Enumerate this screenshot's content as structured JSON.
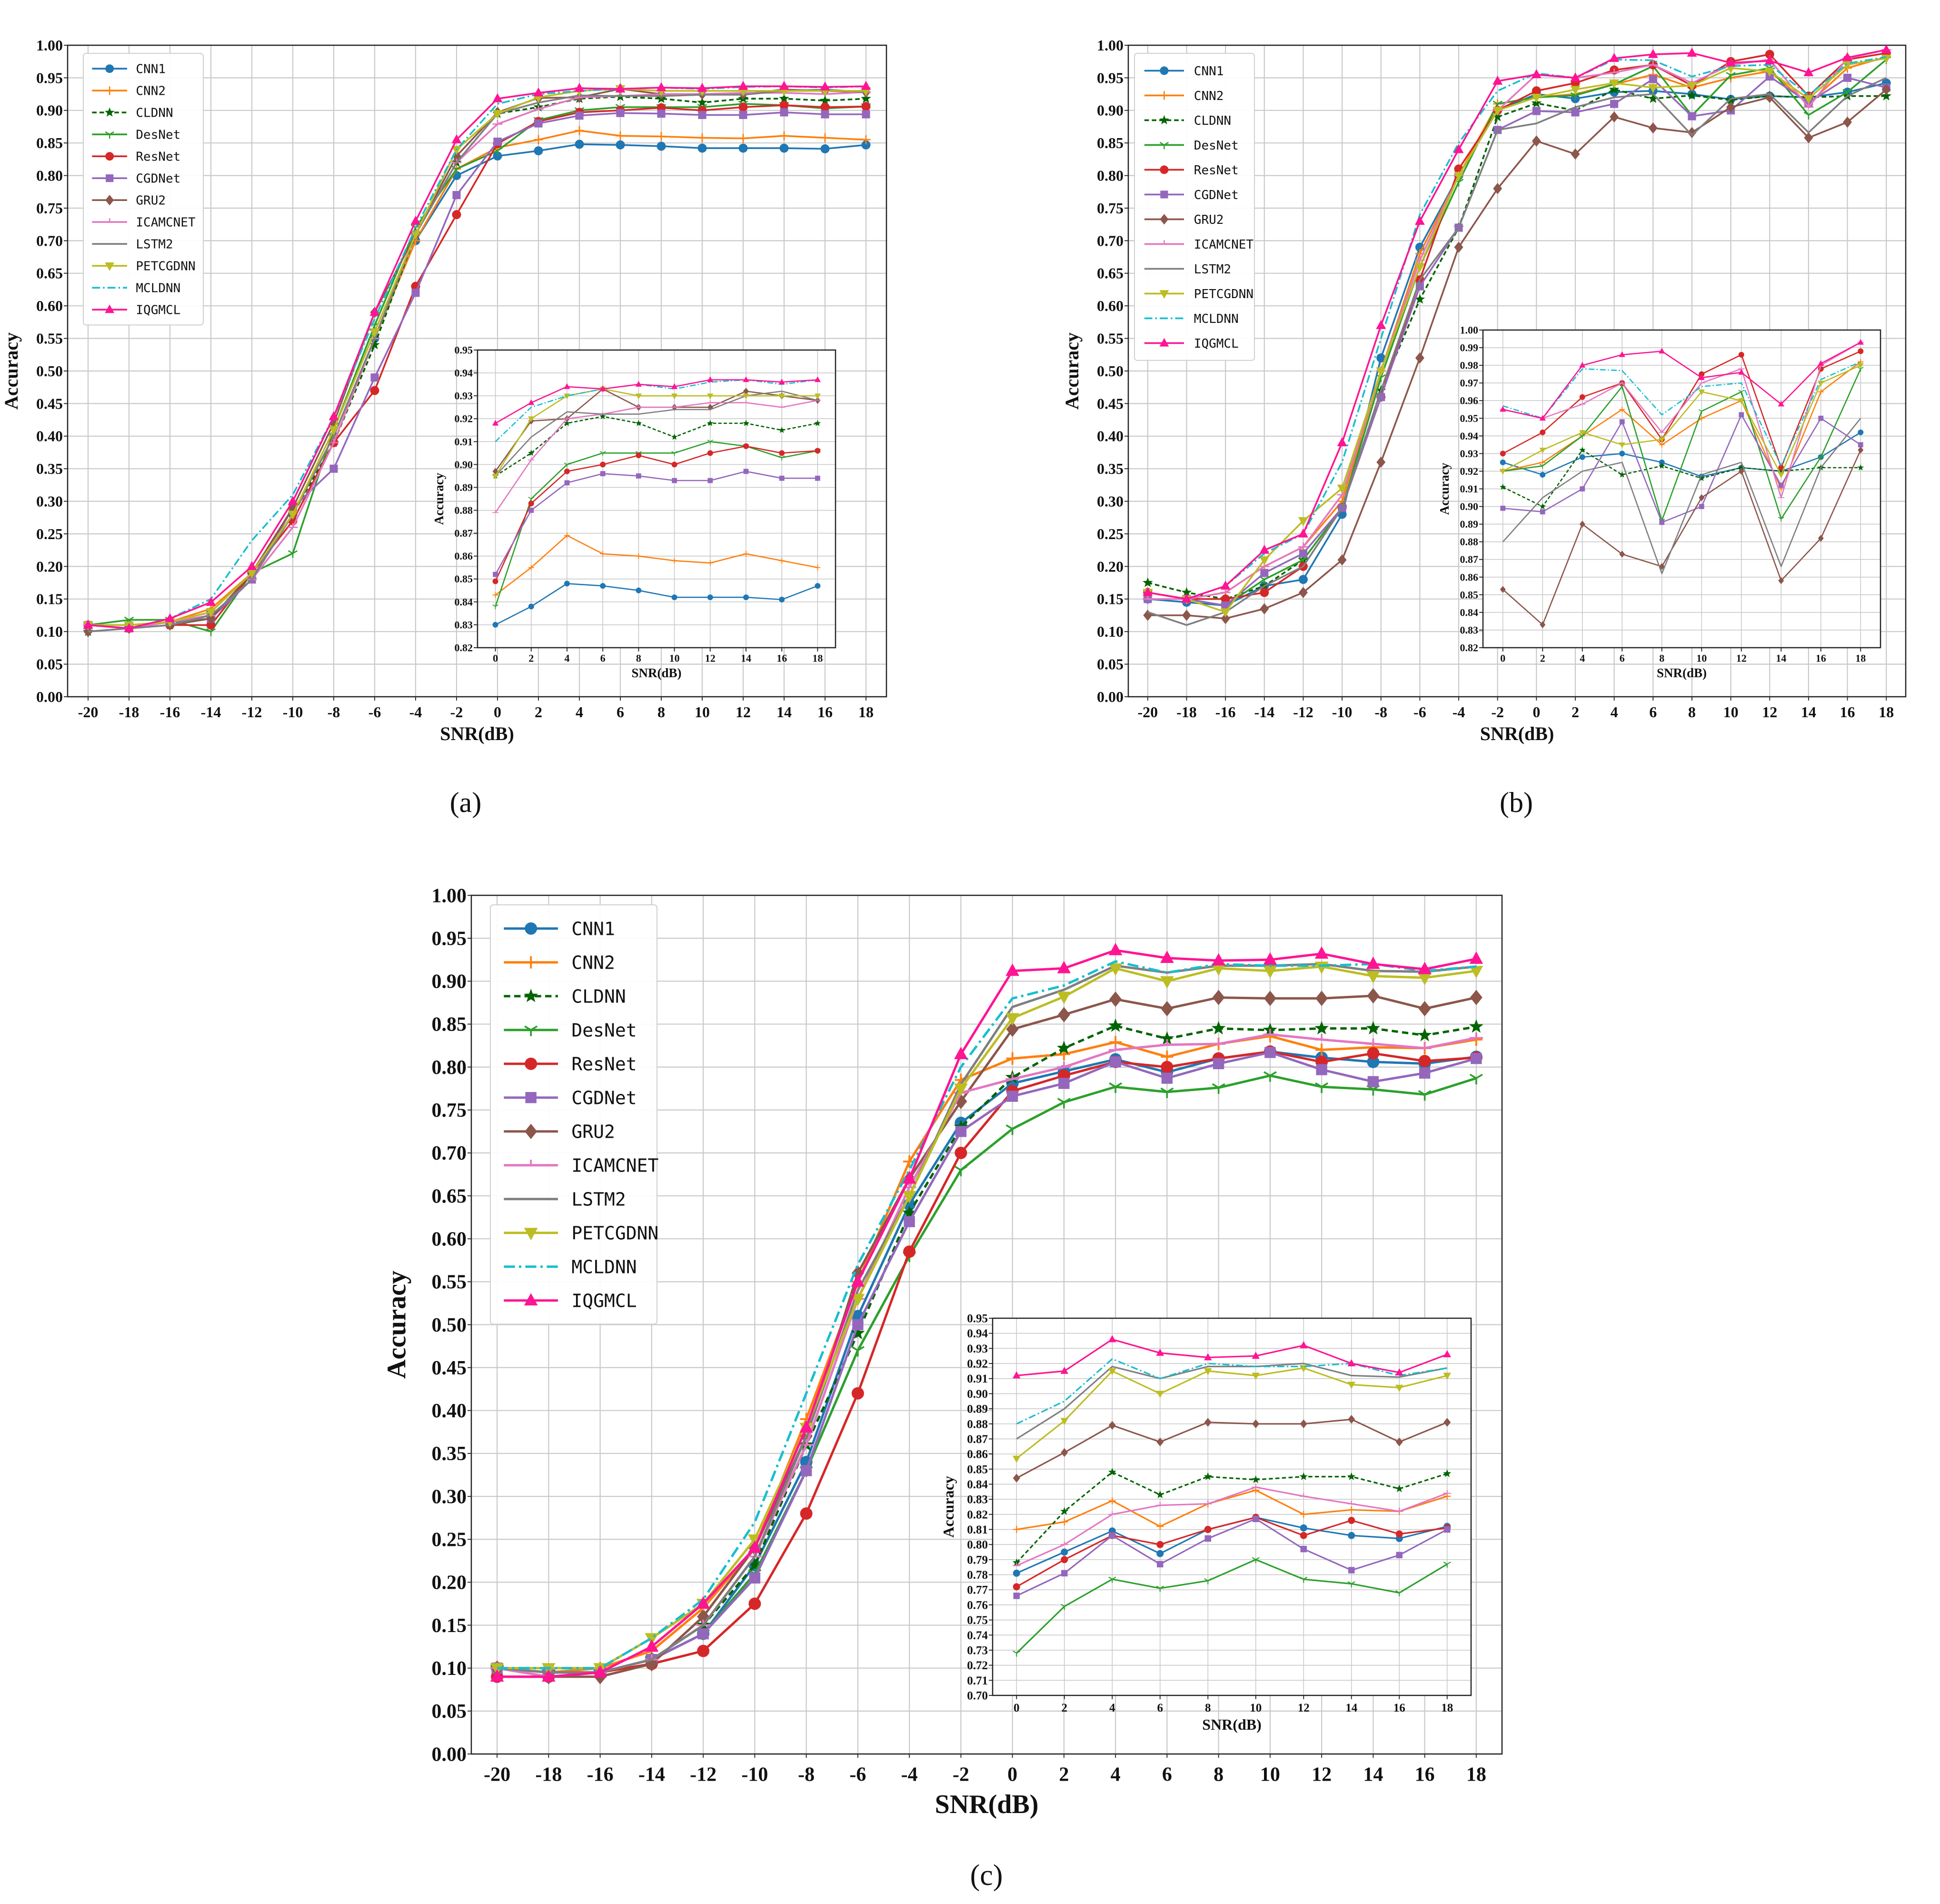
{
  "colors": {
    "CNN1": "#1f77b4",
    "CNN2": "#ff7f0e",
    "CLDNN": "#006400",
    "DesNet": "#2ca02c",
    "ResNet": "#d62728",
    "CGDNet": "#9467bd",
    "GRU2": "#8c564b",
    "ICAMCNET": "#e377c2",
    "LSTM2": "#7f7f7f",
    "PETCGDNN": "#bcbd22",
    "MCLDNN": "#17becf",
    "IQGMCL": "#ff1493"
  },
  "chart_data": [
    {
      "id": "a",
      "panel_label": "(a)",
      "type": "line",
      "xlabel": "SNR(dB)",
      "ylabel": "Accuracy",
      "x": [
        -20,
        -18,
        -16,
        -14,
        -12,
        -10,
        -8,
        -6,
        -4,
        -2,
        0,
        2,
        4,
        6,
        8,
        10,
        12,
        14,
        16,
        18
      ],
      "ylim": [
        0,
        1
      ],
      "yticks_step": 0.05,
      "grid": true,
      "legend": "top-left",
      "series": [
        {
          "name": "CNN1",
          "values": [
            0.11,
            0.11,
            0.115,
            0.13,
            0.19,
            0.28,
            0.4,
            0.55,
            0.7,
            0.8,
            0.83,
            0.838,
            0.848,
            0.847,
            0.845,
            0.842,
            0.842,
            0.842,
            0.841,
            0.847
          ]
        },
        {
          "name": "CNN2",
          "values": [
            0.11,
            0.11,
            0.115,
            0.135,
            0.19,
            0.28,
            0.4,
            0.55,
            0.7,
            0.81,
            0.843,
            0.855,
            0.869,
            0.861,
            0.86,
            0.858,
            0.857,
            0.861,
            0.858,
            0.855
          ]
        },
        {
          "name": "CLDNN",
          "values": [
            0.1,
            0.105,
            0.11,
            0.12,
            0.18,
            0.28,
            0.39,
            0.54,
            0.71,
            0.82,
            0.895,
            0.905,
            0.918,
            0.921,
            0.918,
            0.912,
            0.918,
            0.918,
            0.915,
            0.918
          ]
        },
        {
          "name": "DesNet",
          "values": [
            0.11,
            0.118,
            0.118,
            0.1,
            0.19,
            0.22,
            0.41,
            0.57,
            0.72,
            0.81,
            0.838,
            0.885,
            0.9,
            0.905,
            0.905,
            0.905,
            0.91,
            0.908,
            0.903,
            0.906
          ]
        },
        {
          "name": "ResNet",
          "values": [
            0.11,
            0.105,
            0.11,
            0.11,
            0.19,
            0.27,
            0.39,
            0.47,
            0.63,
            0.74,
            0.849,
            0.883,
            0.897,
            0.9,
            0.904,
            0.9,
            0.905,
            0.908,
            0.905,
            0.906
          ]
        },
        {
          "name": "CGDNet",
          "values": [
            0.11,
            0.105,
            0.115,
            0.12,
            0.18,
            0.29,
            0.35,
            0.49,
            0.62,
            0.77,
            0.852,
            0.88,
            0.892,
            0.896,
            0.895,
            0.893,
            0.893,
            0.897,
            0.894,
            0.894
          ]
        },
        {
          "name": "GRU2",
          "values": [
            0.1,
            0.105,
            0.11,
            0.12,
            0.19,
            0.29,
            0.42,
            0.59,
            0.71,
            0.83,
            0.897,
            0.919,
            0.92,
            0.933,
            0.925,
            0.925,
            0.925,
            0.932,
            0.93,
            0.928
          ]
        },
        {
          "name": "ICAMCNET",
          "values": [
            0.11,
            0.105,
            0.115,
            0.125,
            0.18,
            0.26,
            0.39,
            0.55,
            0.71,
            0.82,
            0.879,
            0.902,
            0.92,
            0.922,
            0.925,
            0.925,
            0.927,
            0.927,
            0.925,
            0.928
          ]
        },
        {
          "name": "LSTM2",
          "values": [
            0.1,
            0.105,
            0.11,
            0.125,
            0.18,
            0.28,
            0.4,
            0.55,
            0.71,
            0.82,
            0.895,
            0.912,
            0.923,
            0.922,
            0.922,
            0.924,
            0.924,
            0.93,
            0.932,
            0.928
          ]
        },
        {
          "name": "PETCGDNN",
          "values": [
            0.11,
            0.11,
            0.115,
            0.13,
            0.19,
            0.28,
            0.41,
            0.56,
            0.71,
            0.84,
            0.895,
            0.92,
            0.93,
            0.933,
            0.93,
            0.93,
            0.93,
            0.93,
            0.93,
            0.93
          ]
        },
        {
          "name": "MCLDNN",
          "values": [
            0.11,
            0.105,
            0.12,
            0.15,
            0.24,
            0.31,
            0.43,
            0.58,
            0.72,
            0.84,
            0.91,
            0.925,
            0.93,
            0.933,
            0.935,
            0.933,
            0.936,
            0.937,
            0.935,
            0.937
          ]
        },
        {
          "name": "IQGMCL",
          "values": [
            0.11,
            0.105,
            0.12,
            0.145,
            0.2,
            0.3,
            0.43,
            0.59,
            0.73,
            0.855,
            0.918,
            0.927,
            0.934,
            0.933,
            0.935,
            0.934,
            0.937,
            0.937,
            0.936,
            0.937
          ]
        }
      ],
      "inset": {
        "xlabel": "SNR(dB)",
        "ylabel": "Accuracy",
        "x_from": 0,
        "ylim": [
          0.82,
          0.95
        ],
        "yticks_step": 0.01
      }
    },
    {
      "id": "b",
      "panel_label": "(b)",
      "type": "line",
      "xlabel": "SNR(dB)",
      "ylabel": "Accuracy",
      "x": [
        -20,
        -18,
        -16,
        -14,
        -12,
        -10,
        -8,
        -6,
        -4,
        -2,
        0,
        2,
        4,
        6,
        8,
        10,
        12,
        14,
        16,
        18
      ],
      "ylim": [
        0,
        1
      ],
      "yticks_step": 0.05,
      "grid": true,
      "legend": "top-left",
      "series": [
        {
          "name": "CNN1",
          "values": [
            0.15,
            0.145,
            0.14,
            0.17,
            0.18,
            0.28,
            0.52,
            0.69,
            0.8,
            0.9,
            0.925,
            0.918,
            0.928,
            0.93,
            0.925,
            0.917,
            0.922,
            0.92,
            0.928,
            0.942
          ]
        },
        {
          "name": "CNN2",
          "values": [
            0.16,
            0.15,
            0.16,
            0.2,
            0.23,
            0.3,
            0.5,
            0.68,
            0.8,
            0.91,
            0.92,
            0.925,
            0.94,
            0.955,
            0.935,
            0.95,
            0.96,
            0.91,
            0.965,
            0.982
          ]
        },
        {
          "name": "CLDNN",
          "values": [
            0.175,
            0.16,
            0.15,
            0.17,
            0.21,
            0.29,
            0.47,
            0.61,
            0.72,
            0.89,
            0.911,
            0.9,
            0.932,
            0.918,
            0.923,
            0.916,
            0.922,
            0.92,
            0.922,
            0.922
          ]
        },
        {
          "name": "DesNet",
          "values": [
            0.16,
            0.15,
            0.14,
            0.18,
            0.21,
            0.29,
            0.49,
            0.66,
            0.79,
            0.91,
            0.92,
            0.923,
            0.94,
            0.968,
            0.892,
            0.954,
            0.965,
            0.893,
            0.928,
            0.978
          ]
        },
        {
          "name": "ResNet",
          "values": [
            0.16,
            0.15,
            0.15,
            0.16,
            0.2,
            0.29,
            0.46,
            0.64,
            0.81,
            0.9,
            0.93,
            0.942,
            0.962,
            0.97,
            0.938,
            0.975,
            0.986,
            0.922,
            0.978,
            0.988
          ]
        },
        {
          "name": "CGDNet",
          "values": [
            0.15,
            0.15,
            0.14,
            0.19,
            0.22,
            0.29,
            0.46,
            0.63,
            0.72,
            0.87,
            0.899,
            0.897,
            0.91,
            0.948,
            0.891,
            0.9,
            0.952,
            0.912,
            0.95,
            0.935
          ]
        },
        {
          "name": "GRU2",
          "values": [
            0.125,
            0.125,
            0.12,
            0.135,
            0.16,
            0.21,
            0.36,
            0.52,
            0.69,
            0.78,
            0.853,
            0.833,
            0.89,
            0.873,
            0.866,
            0.905,
            0.92,
            0.858,
            0.882,
            0.932
          ]
        },
        {
          "name": "ICAMCNET",
          "values": [
            0.15,
            0.15,
            0.16,
            0.2,
            0.23,
            0.31,
            0.5,
            0.67,
            0.8,
            0.9,
            0.955,
            0.95,
            0.958,
            0.97,
            0.942,
            0.97,
            0.978,
            0.905,
            0.98,
            0.993
          ]
        },
        {
          "name": "LSTM2",
          "values": [
            0.13,
            0.11,
            0.13,
            0.17,
            0.2,
            0.29,
            0.47,
            0.64,
            0.72,
            0.87,
            0.88,
            0.905,
            0.92,
            0.925,
            0.862,
            0.918,
            0.925,
            0.866,
            0.922,
            0.95
          ]
        },
        {
          "name": "PETCGDNN",
          "values": [
            0.16,
            0.15,
            0.13,
            0.21,
            0.27,
            0.32,
            0.5,
            0.66,
            0.8,
            0.9,
            0.92,
            0.932,
            0.942,
            0.935,
            0.938,
            0.965,
            0.96,
            0.918,
            0.97,
            0.98
          ]
        },
        {
          "name": "MCLDNN",
          "values": [
            0.16,
            0.15,
            0.17,
            0.22,
            0.25,
            0.36,
            0.55,
            0.74,
            0.85,
            0.93,
            0.957,
            0.95,
            0.978,
            0.977,
            0.952,
            0.968,
            0.97,
            0.923,
            0.972,
            0.982
          ]
        },
        {
          "name": "IQGMCL",
          "values": [
            0.16,
            0.15,
            0.17,
            0.225,
            0.25,
            0.39,
            0.57,
            0.73,
            0.84,
            0.945,
            0.955,
            0.95,
            0.98,
            0.986,
            0.988,
            0.973,
            0.976,
            0.958,
            0.981,
            0.993
          ]
        }
      ],
      "inset": {
        "xlabel": "SNR(dB)",
        "ylabel": "Accuracy",
        "x_from": 0,
        "ylim": [
          0.82,
          1.0
        ],
        "yticks_step": 0.01
      }
    },
    {
      "id": "c",
      "panel_label": "(c)",
      "type": "line",
      "xlabel": "SNR(dB)",
      "ylabel": "Accuracy",
      "x": [
        -20,
        -18,
        -16,
        -14,
        -12,
        -10,
        -8,
        -6,
        -4,
        -2,
        0,
        2,
        4,
        6,
        8,
        10,
        12,
        14,
        16,
        18
      ],
      "ylim": [
        0,
        1
      ],
      "yticks_step": 0.05,
      "grid": true,
      "legend": "top-left",
      "series": [
        {
          "name": "CNN1",
          "values": [
            0.1,
            0.095,
            0.095,
            0.11,
            0.14,
            0.22,
            0.34,
            0.51,
            0.64,
            0.735,
            0.781,
            0.795,
            0.809,
            0.794,
            0.81,
            0.818,
            0.811,
            0.806,
            0.804,
            0.812
          ]
        },
        {
          "name": "CNN2",
          "values": [
            0.1,
            0.095,
            0.1,
            0.12,
            0.17,
            0.24,
            0.39,
            0.55,
            0.69,
            0.785,
            0.81,
            0.815,
            0.829,
            0.812,
            0.827,
            0.836,
            0.82,
            0.823,
            0.822,
            0.832
          ]
        },
        {
          "name": "CLDNN",
          "values": [
            0.1,
            0.095,
            0.095,
            0.11,
            0.15,
            0.22,
            0.36,
            0.49,
            0.63,
            0.73,
            0.788,
            0.822,
            0.848,
            0.833,
            0.845,
            0.843,
            0.845,
            0.845,
            0.837,
            0.847
          ]
        },
        {
          "name": "DesNet",
          "values": [
            0.1,
            0.095,
            0.095,
            0.11,
            0.14,
            0.21,
            0.33,
            0.47,
            0.58,
            0.68,
            0.728,
            0.759,
            0.777,
            0.771,
            0.776,
            0.79,
            0.777,
            0.774,
            0.768,
            0.787
          ]
        },
        {
          "name": "ResNet",
          "values": [
            0.09,
            0.09,
            0.095,
            0.105,
            0.12,
            0.175,
            0.28,
            0.42,
            0.585,
            0.7,
            0.772,
            0.79,
            0.806,
            0.8,
            0.81,
            0.818,
            0.806,
            0.816,
            0.807,
            0.811
          ]
        },
        {
          "name": "CGDNet",
          "values": [
            0.1,
            0.095,
            0.095,
            0.11,
            0.14,
            0.205,
            0.33,
            0.5,
            0.62,
            0.725,
            0.766,
            0.781,
            0.806,
            0.787,
            0.804,
            0.817,
            0.797,
            0.783,
            0.793,
            0.81
          ]
        },
        {
          "name": "GRU2",
          "values": [
            0.1,
            0.09,
            0.09,
            0.105,
            0.16,
            0.24,
            0.37,
            0.56,
            0.67,
            0.76,
            0.844,
            0.861,
            0.879,
            0.868,
            0.881,
            0.88,
            0.88,
            0.883,
            0.868,
            0.881
          ]
        },
        {
          "name": "ICAMCNET",
          "values": [
            0.1,
            0.09,
            0.095,
            0.11,
            0.15,
            0.23,
            0.36,
            0.53,
            0.66,
            0.77,
            0.786,
            0.8,
            0.82,
            0.826,
            0.827,
            0.838,
            0.832,
            0.827,
            0.822,
            0.834
          ]
        },
        {
          "name": "LSTM2",
          "values": [
            0.1,
            0.095,
            0.095,
            0.11,
            0.15,
            0.23,
            0.37,
            0.54,
            0.65,
            0.78,
            0.87,
            0.89,
            0.918,
            0.91,
            0.918,
            0.918,
            0.92,
            0.912,
            0.911,
            0.917
          ]
        },
        {
          "name": "PETCGDNN",
          "values": [
            0.1,
            0.1,
            0.1,
            0.135,
            0.175,
            0.25,
            0.38,
            0.53,
            0.65,
            0.775,
            0.857,
            0.882,
            0.915,
            0.9,
            0.915,
            0.912,
            0.917,
            0.906,
            0.904,
            0.912
          ]
        },
        {
          "name": "MCLDNN",
          "values": [
            0.1,
            0.1,
            0.1,
            0.135,
            0.18,
            0.27,
            0.42,
            0.57,
            0.68,
            0.8,
            0.88,
            0.895,
            0.923,
            0.91,
            0.92,
            0.918,
            0.918,
            0.92,
            0.912,
            0.917
          ]
        },
        {
          "name": "IQGMCL",
          "values": [
            0.09,
            0.09,
            0.095,
            0.125,
            0.175,
            0.24,
            0.38,
            0.55,
            0.67,
            0.815,
            0.912,
            0.915,
            0.936,
            0.927,
            0.924,
            0.925,
            0.932,
            0.92,
            0.914,
            0.926
          ]
        }
      ],
      "inset": {
        "xlabel": "SNR(dB)",
        "ylabel": "Accuracy",
        "x_from": 0,
        "ylim": [
          0.7,
          0.95
        ],
        "yticks_step": 0.01
      }
    }
  ]
}
